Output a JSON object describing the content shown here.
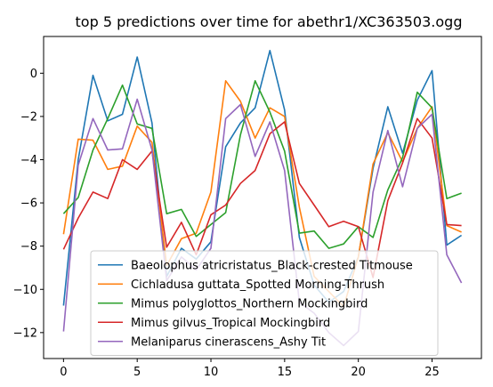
{
  "chart_data": {
    "type": "line",
    "title": "top 5 predictions over time for abethr1/XC363503.ogg",
    "xlabel": "",
    "ylabel": "",
    "xlim": [
      -1.35,
      28.35
    ],
    "ylim": [
      -13.2,
      1.7
    ],
    "x_ticks": [
      0,
      5,
      10,
      15,
      20,
      25
    ],
    "y_ticks": [
      -12,
      -10,
      -8,
      -6,
      -4,
      -2,
      0
    ],
    "grid": false,
    "legend_position": "lower-center",
    "x": [
      0,
      1,
      2,
      3,
      4,
      5,
      6,
      7,
      8,
      9,
      10,
      11,
      12,
      13,
      14,
      15,
      16,
      17,
      18,
      19,
      20,
      21,
      22,
      23,
      24,
      25,
      26,
      27
    ],
    "series": [
      {
        "name": "Baeolophus atricristatus_Black-crested Titmouse",
        "color": "#1f77b4",
        "values": [
          -10.75,
          -4.0,
          -0.1,
          -2.2,
          -1.9,
          0.75,
          -2.3,
          -9.4,
          -8.1,
          -8.6,
          -7.8,
          -3.4,
          -2.3,
          -1.6,
          1.05,
          -1.7,
          -7.6,
          -9.8,
          -10.6,
          -10.1,
          -8.5,
          -4.4,
          -1.55,
          -3.7,
          -1.25,
          0.12,
          -7.95,
          -7.5
        ]
      },
      {
        "name": "Cichladusa guttata_Spotted Morning-Thrush",
        "color": "#ff7f0e",
        "values": [
          -7.45,
          -3.05,
          -3.1,
          -4.45,
          -4.3,
          -2.45,
          -3.2,
          -8.9,
          -7.65,
          -7.4,
          -5.5,
          -0.35,
          -1.3,
          -3.0,
          -1.6,
          -2.0,
          -6.2,
          -9.4,
          -10.1,
          -10.8,
          -8.5,
          -4.2,
          -2.75,
          -4.1,
          -2.55,
          -1.55,
          -7.05,
          -7.35
        ]
      },
      {
        "name": "Mimus polyglottos_Northern Mockingbird",
        "color": "#2ca02c",
        "values": [
          -6.5,
          -5.75,
          -3.55,
          -2.1,
          -0.55,
          -2.35,
          -2.55,
          -6.5,
          -6.3,
          -7.55,
          -7.0,
          -6.45,
          -2.85,
          -0.35,
          -1.8,
          -3.6,
          -7.4,
          -7.3,
          -8.1,
          -7.9,
          -7.1,
          -7.6,
          -5.4,
          -3.9,
          -0.88,
          -1.6,
          -5.8,
          -5.55
        ]
      },
      {
        "name": "Mimus gilvus_Tropical Mockingbird",
        "color": "#d62728",
        "values": [
          -8.15,
          -6.7,
          -5.5,
          -5.8,
          -4.0,
          -4.45,
          -3.6,
          -8.05,
          -6.9,
          -8.4,
          -6.55,
          -6.1,
          -5.1,
          -4.5,
          -2.8,
          -2.25,
          -5.1,
          -6.1,
          -7.1,
          -6.85,
          -7.1,
          -9.45,
          -5.9,
          -4.15,
          -2.1,
          -3.0,
          -7.0,
          -7.05
        ]
      },
      {
        "name": "Melaniparus cinerascens_Ashy Tit",
        "color": "#9467bd",
        "values": [
          -11.95,
          -4.25,
          -2.1,
          -3.55,
          -3.5,
          -1.2,
          -3.55,
          -9.6,
          -8.5,
          -9.1,
          -8.1,
          -2.1,
          -1.45,
          -3.85,
          -2.25,
          -4.5,
          -10.6,
          -11.1,
          -12.0,
          -12.6,
          -11.95,
          -5.5,
          -2.65,
          -5.25,
          -2.55,
          -1.9,
          -8.4,
          -9.7
        ]
      }
    ]
  }
}
